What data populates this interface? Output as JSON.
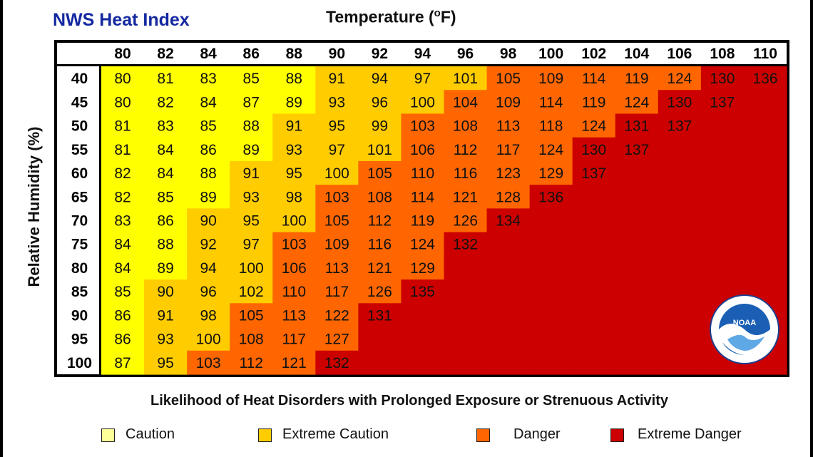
{
  "header": {
    "brand_title": "NWS Heat Index",
    "axis_title_text": "Temperature (",
    "axis_title_sup": "o",
    "axis_title_end": "F)"
  },
  "footer": {
    "subtitle": "Likelihood of Heat Disorders with Prolonged Exposure or Strenuous Activity"
  },
  "logo": {
    "icon": "noaa-logo-icon",
    "text": "NOAA"
  },
  "chart_data": {
    "type": "heatmap",
    "title": "NWS Heat Index",
    "xlabel": "Temperature (°F)",
    "ylabel": "Relative Humidity (%)",
    "x": [
      80,
      82,
      84,
      86,
      88,
      90,
      92,
      94,
      96,
      98,
      100,
      102,
      104,
      106,
      108,
      110
    ],
    "y": [
      40,
      45,
      50,
      55,
      60,
      65,
      70,
      75,
      80,
      85,
      90,
      95,
      100
    ],
    "values": [
      [
        80,
        81,
        83,
        85,
        88,
        91,
        94,
        97,
        101,
        105,
        109,
        114,
        119,
        124,
        130,
        136
      ],
      [
        80,
        82,
        84,
        87,
        89,
        93,
        96,
        100,
        104,
        109,
        114,
        119,
        124,
        130,
        137,
        null
      ],
      [
        81,
        83,
        85,
        88,
        91,
        95,
        99,
        103,
        108,
        113,
        118,
        124,
        131,
        137,
        null,
        null
      ],
      [
        81,
        84,
        86,
        89,
        93,
        97,
        101,
        106,
        112,
        117,
        124,
        130,
        137,
        null,
        null,
        null
      ],
      [
        82,
        84,
        88,
        91,
        95,
        100,
        105,
        110,
        116,
        123,
        129,
        137,
        null,
        null,
        null,
        null
      ],
      [
        82,
        85,
        89,
        93,
        98,
        103,
        108,
        114,
        121,
        128,
        136,
        null,
        null,
        null,
        null,
        null
      ],
      [
        83,
        86,
        90,
        95,
        100,
        105,
        112,
        119,
        126,
        134,
        null,
        null,
        null,
        null,
        null,
        null
      ],
      [
        84,
        88,
        92,
        97,
        103,
        109,
        116,
        124,
        132,
        null,
        null,
        null,
        null,
        null,
        null,
        null
      ],
      [
        84,
        89,
        94,
        100,
        106,
        113,
        121,
        129,
        null,
        null,
        null,
        null,
        null,
        null,
        null,
        null
      ],
      [
        85,
        90,
        96,
        102,
        110,
        117,
        126,
        135,
        null,
        null,
        null,
        null,
        null,
        null,
        null,
        null
      ],
      [
        86,
        91,
        98,
        105,
        113,
        122,
        131,
        null,
        null,
        null,
        null,
        null,
        null,
        null,
        null,
        null
      ],
      [
        86,
        93,
        100,
        108,
        117,
        127,
        null,
        null,
        null,
        null,
        null,
        null,
        null,
        null,
        null,
        null
      ],
      [
        87,
        95,
        103,
        112,
        121,
        132,
        null,
        null,
        null,
        null,
        null,
        null,
        null,
        null,
        null,
        null
      ]
    ],
    "categories": [
      {
        "name": "Caution",
        "color": "#ffff00"
      },
      {
        "name": "Extreme Caution",
        "color": "#ffcc00"
      },
      {
        "name": "Danger",
        "color": "#ff6600"
      },
      {
        "name": "Extreme Danger",
        "color": "#cc0000"
      }
    ],
    "legend_position": "bottom",
    "legend_swatch_colors": [
      "#ffff99",
      "#ffcc00",
      "#ff6600",
      "#cc0000"
    ],
    "legend": [
      "Caution",
      "Extreme Caution",
      "Danger",
      "Extreme Danger"
    ],
    "grid": false
  }
}
